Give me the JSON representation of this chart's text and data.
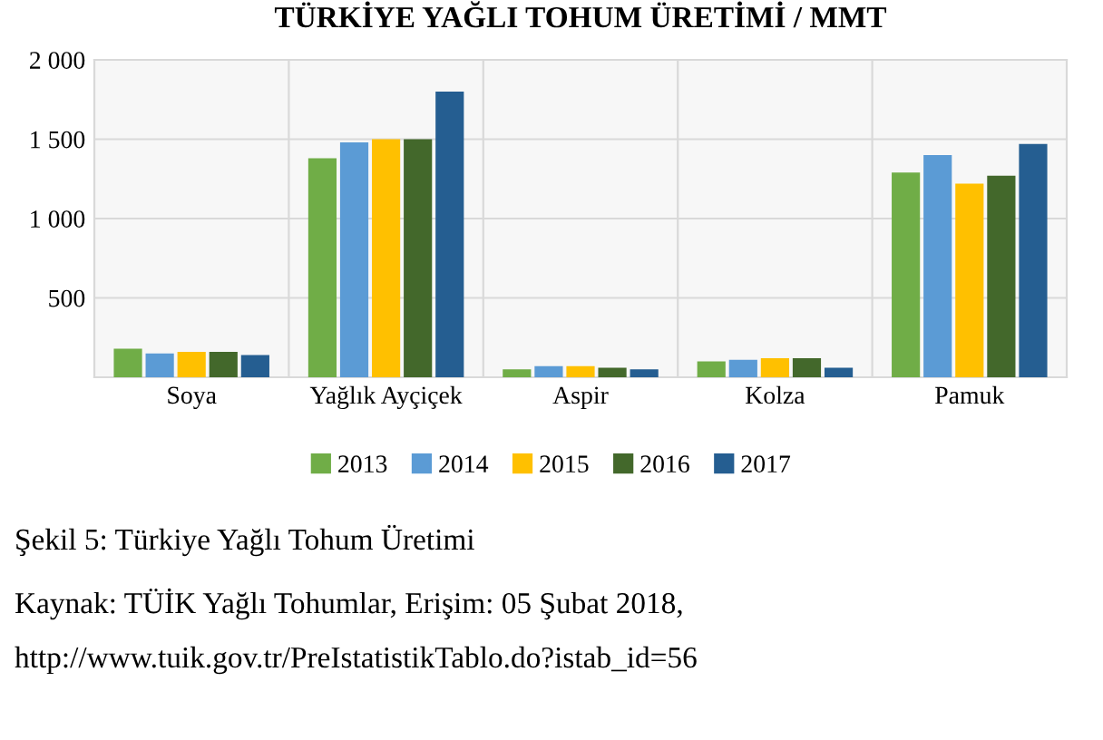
{
  "chart_data": {
    "type": "bar",
    "title": "TÜRKİYE YAĞLI TOHUM ÜRETİMİ / MMT",
    "categories": [
      "Soya",
      "Yağlık Ayçiçek",
      "Aspir",
      "Kolza",
      "Pamuk"
    ],
    "series": [
      {
        "name": "2013",
        "color": "#70ad47",
        "values": [
          180,
          1380,
          50,
          100,
          1290
        ]
      },
      {
        "name": "2014",
        "color": "#5b9bd5",
        "values": [
          150,
          1480,
          70,
          110,
          1400
        ]
      },
      {
        "name": "2015",
        "color": "#ffc000",
        "values": [
          160,
          1500,
          70,
          120,
          1220
        ]
      },
      {
        "name": "2016",
        "color": "#43682b",
        "values": [
          160,
          1500,
          60,
          120,
          1270
        ]
      },
      {
        "name": "2017",
        "color": "#255e91",
        "values": [
          140,
          1800,
          50,
          60,
          1470
        ]
      }
    ],
    "ylim": [
      0,
      2000
    ],
    "yticks": [
      {
        "value": 500,
        "label": "500"
      },
      {
        "value": 1000,
        "label": "1 000"
      },
      {
        "value": 1500,
        "label": "1 500"
      },
      {
        "value": 2000,
        "label": "2 000"
      }
    ],
    "grid": true,
    "legend": "bottom",
    "annotations": [
      "Şekil 5: Türkiye Yağlı Tohum Üretimi",
      "Kaynak: TÜİK Yağlı Tohumlar, Erişim: 05 Şubat 2018,",
      "http://www.tuik.gov.tr/PreIstatistikTablo.do?istab_id=56"
    ]
  }
}
